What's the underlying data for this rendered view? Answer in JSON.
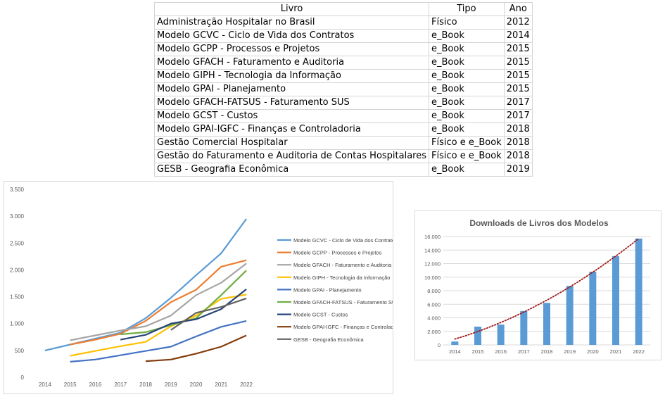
{
  "table": {
    "headers": [
      "Livro",
      "Tipo",
      "Ano"
    ],
    "rows": [
      [
        "Administração Hospitalar no Brasil",
        "Físico",
        "2012"
      ],
      [
        "Modelo GCVC - Ciclo de Vida dos Contratos",
        "e_Book",
        "2014"
      ],
      [
        "Modelo GCPP - Processos e Projetos",
        "e_Book",
        "2015"
      ],
      [
        "Modelo GFACH - Faturamento e Auditoria",
        "e_Book",
        "2015"
      ],
      [
        "Modelo GIPH - Tecnologia da Informação",
        "e_Book",
        "2015"
      ],
      [
        "Modelo GPAI - Planejamento",
        "e_Book",
        "2015"
      ],
      [
        "Modelo GFACH-FATSUS - Faturamento SUS",
        "e_Book",
        "2017"
      ],
      [
        "Modelo GCST - Custos",
        "e_Book",
        "2017"
      ],
      [
        "Modelo GPAI-IGFC - Finanças e Controladoria",
        "e_Book",
        "2018"
      ],
      [
        "Gestão Comercial Hospitalar",
        "Físico e e_Book",
        "2018"
      ],
      [
        "Gestão do Faturamento e Auditoria de Contas Hospitalares",
        "Físico e e_Book",
        "2018"
      ],
      [
        "GESB - Geografia Econômica",
        "e_Book",
        "2019"
      ]
    ]
  },
  "chart_data": [
    {
      "type": "line",
      "title": "",
      "xlabel": "",
      "ylabel": "",
      "categories": [
        "2014",
        "2015",
        "2016",
        "2017",
        "2018",
        "2019",
        "2020",
        "2021",
        "2022"
      ],
      "ylim": [
        0,
        3500
      ],
      "yticks": [
        0,
        500,
        1000,
        1500,
        2000,
        2500,
        3000,
        3500
      ],
      "ytick_labels": [
        "0",
        "500",
        "1.000",
        "1.500",
        "2.000",
        "2.500",
        "3.000",
        "3.500"
      ],
      "grid": false,
      "legend": "right",
      "series": [
        {
          "name": "Modelo GCVC - Ciclo de Vida dos Contratos",
          "color": "#5b9bd5",
          "values": [
            500,
            610,
            720,
            830,
            1100,
            1480,
            1900,
            2310,
            2950
          ]
        },
        {
          "name": "Modelo GCPP - Processos e Projetos",
          "color": "#ed7d31",
          "values": [
            null,
            610,
            700,
            810,
            1050,
            1400,
            1630,
            2060,
            2180
          ]
        },
        {
          "name": "Modelo GFACH - Faturamento e Auditoria",
          "color": "#a5a5a5",
          "values": [
            null,
            690,
            780,
            870,
            950,
            1150,
            1530,
            1760,
            2120
          ]
        },
        {
          "name": "Modelo GIPH - Tecnologia da Informação",
          "color": "#ffc000",
          "values": [
            null,
            400,
            490,
            580,
            660,
            950,
            1150,
            1460,
            1540
          ]
        },
        {
          "name": "Modelo GPAI - Planejamento",
          "color": "#4472c4",
          "values": [
            null,
            290,
            330,
            410,
            490,
            570,
            760,
            940,
            1050
          ]
        },
        {
          "name": "Modelo GFACH-FATSUS - Faturamento SUS",
          "color": "#70ad47",
          "values": [
            null,
            null,
            null,
            800,
            840,
            970,
            1100,
            1530,
            1990
          ]
        },
        {
          "name": "Modelo GCST - Custos",
          "color": "#264478",
          "values": [
            null,
            null,
            null,
            700,
            790,
            1000,
            1080,
            1270,
            1640
          ]
        },
        {
          "name": "Modelo GPAI-IGFC - Finanças e Controladoria",
          "color": "#843c0c",
          "values": [
            null,
            null,
            null,
            null,
            300,
            330,
            440,
            570,
            780
          ]
        },
        {
          "name": "GESB - Geografia Econômica",
          "color": "#636363",
          "values": [
            null,
            null,
            null,
            null,
            null,
            880,
            1200,
            1310,
            1470
          ]
        }
      ]
    },
    {
      "type": "bar",
      "title": "Downloads de Livros dos Modelos",
      "xlabel": "",
      "ylabel": "",
      "categories": [
        "2014",
        "2015",
        "2016",
        "2017",
        "2018",
        "2019",
        "2020",
        "2021",
        "2022"
      ],
      "values": [
        500,
        2700,
        3000,
        5000,
        6200,
        8700,
        10800,
        13100,
        15700
      ],
      "ylim": [
        0,
        16000
      ],
      "yticks": [
        0,
        2000,
        4000,
        6000,
        8000,
        10000,
        12000,
        14000,
        16000
      ],
      "ytick_labels": [
        "0",
        "2.000",
        "4.000",
        "6.000",
        "8.000",
        "10.000",
        "12.000",
        "14.000",
        "16.000"
      ],
      "grid": true,
      "bar_color": "#5b9bd5",
      "trendline": {
        "type": "polynomial",
        "color": "#9e1a1a",
        "style": "dotted"
      }
    }
  ]
}
